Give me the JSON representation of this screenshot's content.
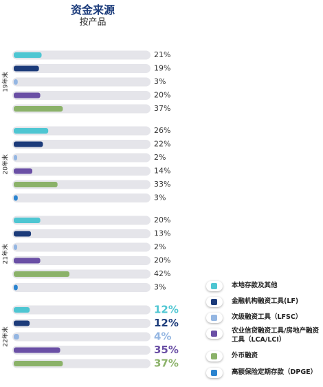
{
  "header": {
    "title": "资金来源",
    "subtitle": "按产品"
  },
  "colors": {
    "track": "#e5e5ea",
    "text": "#333333",
    "series": [
      "#4ec6d2",
      "#1c3b7a",
      "#94b6e2",
      "#6a4fa5",
      "#8bb269",
      "#2b84cf"
    ]
  },
  "legend": {
    "items": [
      {
        "label": "本地存款及其他",
        "icon": "cyan-swatch-icon"
      },
      {
        "label": "金融机构融资工具(LF)",
        "icon": "navy-swatch-icon"
      },
      {
        "label": "次级融资工具（LFSC）",
        "icon": "light-blue-swatch-icon"
      },
      {
        "label": "农业信贷融资工具/房地产融资工具（LCA/LCI）",
        "icon": "purple-swatch-icon"
      },
      {
        "label": "外币融资",
        "icon": "green-swatch-icon"
      },
      {
        "label": "高额保险定期存款（DPGE）",
        "icon": "blue-swatch-icon"
      }
    ]
  },
  "chart_data": {
    "type": "bar",
    "title": "资金来源",
    "subtitle": "按产品",
    "orientation": "horizontal",
    "unit": "%",
    "xlim": [
      0,
      100
    ],
    "series_names": [
      "本地存款及其他",
      "金融机构融资工具(LF)",
      "次级融资工具（LFSC）",
      "农业信贷融资工具/房地产融资工具（LCA/LCI）",
      "外币融资",
      "高额保险定期存款（DPGE）"
    ],
    "groups": [
      {
        "label": "19年末",
        "highlight": false,
        "bars": [
          {
            "series": 0,
            "value": 21,
            "label": "21%"
          },
          {
            "series": 1,
            "value": 19,
            "label": "19%"
          },
          {
            "series": 2,
            "value": 3,
            "label": "3%"
          },
          {
            "series": 3,
            "value": 20,
            "label": "20%"
          },
          {
            "series": 4,
            "value": 37,
            "label": "37%"
          }
        ]
      },
      {
        "label": "20年末",
        "highlight": false,
        "bars": [
          {
            "series": 0,
            "value": 26,
            "label": "26%"
          },
          {
            "series": 1,
            "value": 22,
            "label": "22%"
          },
          {
            "series": 2,
            "value": 2,
            "label": "2%"
          },
          {
            "series": 3,
            "value": 14,
            "label": "14%"
          },
          {
            "series": 4,
            "value": 33,
            "label": "33%"
          },
          {
            "series": 5,
            "value": 3,
            "label": "3%"
          }
        ]
      },
      {
        "label": "21年末",
        "highlight": false,
        "bars": [
          {
            "series": 0,
            "value": 20,
            "label": "20%"
          },
          {
            "series": 1,
            "value": 13,
            "label": "13%"
          },
          {
            "series": 2,
            "value": 2,
            "label": "2%"
          },
          {
            "series": 3,
            "value": 20,
            "label": "20%"
          },
          {
            "series": 4,
            "value": 42,
            "label": "42%"
          },
          {
            "series": 5,
            "value": 3,
            "label": "3%"
          }
        ]
      },
      {
        "label": "22年末",
        "highlight": true,
        "bars": [
          {
            "series": 0,
            "value": 12,
            "label": "12%"
          },
          {
            "series": 1,
            "value": 12,
            "label": "12%"
          },
          {
            "series": 2,
            "value": 4,
            "label": "4%"
          },
          {
            "series": 3,
            "value": 35,
            "label": "35%"
          },
          {
            "series": 4,
            "value": 37,
            "label": "37%"
          }
        ]
      }
    ]
  }
}
